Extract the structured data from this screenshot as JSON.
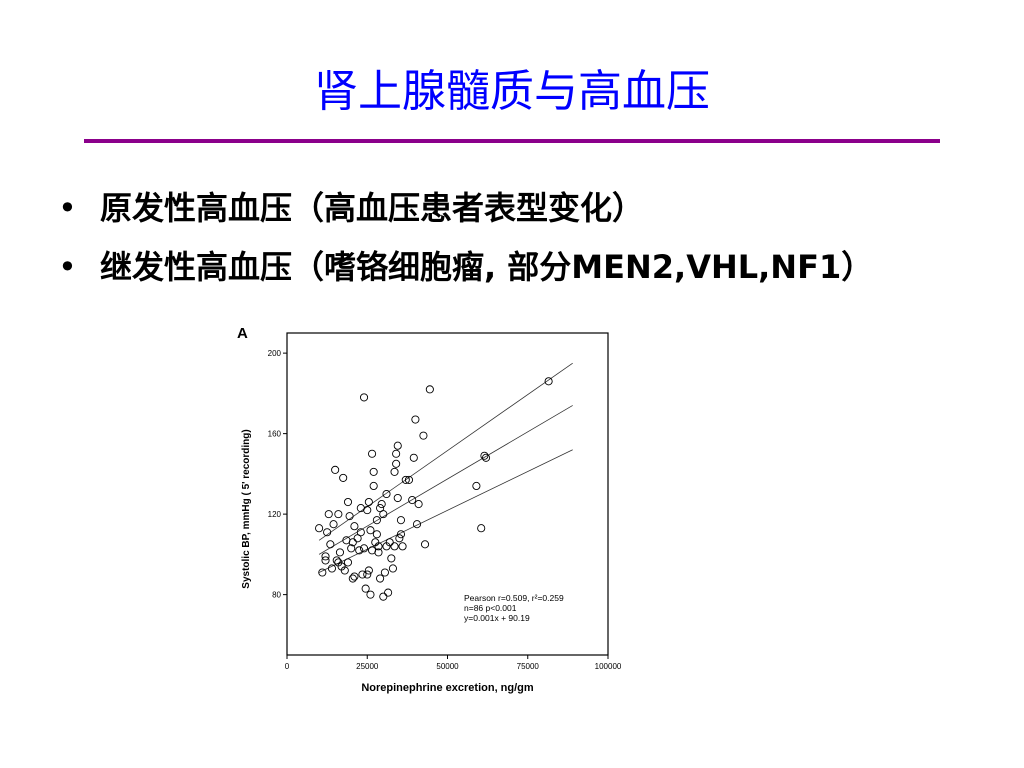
{
  "slide": {
    "title": "肾上腺髓质与高血压",
    "title_color": "#0000ff",
    "rule_color": "#8b008b",
    "bullets": [
      {
        "marker": "•",
        "text": "原发性高血压（高血压患者表型变化）"
      },
      {
        "marker": "•",
        "text": "继发性高血压（嗜铬细胞瘤, 部分MEN2,VHL,NF1）"
      }
    ]
  },
  "chart_data": {
    "type": "scatter",
    "panel_label": "A",
    "xlabel": "Norepinephrine excretion, ng/gm",
    "ylabel": "Systolic BP, mmHg ( 5' recording)",
    "xlim": [
      0,
      100000
    ],
    "ylim": [
      50,
      210
    ],
    "xticks": [
      0,
      25000,
      50000,
      75000,
      100000
    ],
    "yticks": [
      80,
      120,
      160,
      200
    ],
    "xticklabels": [
      "0",
      "25000",
      "50000",
      "75000",
      "100000"
    ],
    "yticklabels": [
      "80",
      "120",
      "160",
      "200"
    ],
    "annotation": [
      "Pearson r=0.509, r²=0.259",
      "n=86  p<0.001",
      "y=0.001x + 90.19"
    ],
    "points": [
      [
        10000,
        113
      ],
      [
        11000,
        91
      ],
      [
        12000,
        97
      ],
      [
        12500,
        111
      ],
      [
        13000,
        120
      ],
      [
        13500,
        105
      ],
      [
        14000,
        93
      ],
      [
        14500,
        115
      ],
      [
        15000,
        142
      ],
      [
        15500,
        97
      ],
      [
        16000,
        120
      ],
      [
        16500,
        101
      ],
      [
        17000,
        94
      ],
      [
        17500,
        138
      ],
      [
        18000,
        92
      ],
      [
        18500,
        107
      ],
      [
        19000,
        126
      ],
      [
        19500,
        119
      ],
      [
        20000,
        103
      ],
      [
        20500,
        106
      ],
      [
        21000,
        114
      ],
      [
        21000,
        89
      ],
      [
        22000,
        108
      ],
      [
        22500,
        102
      ],
      [
        23000,
        111
      ],
      [
        23500,
        90
      ],
      [
        24000,
        178
      ],
      [
        24000,
        103
      ],
      [
        24500,
        83
      ],
      [
        25000,
        122
      ],
      [
        25000,
        90
      ],
      [
        25500,
        126
      ],
      [
        26000,
        112
      ],
      [
        26000,
        80
      ],
      [
        26500,
        102
      ],
      [
        26500,
        150
      ],
      [
        27000,
        141
      ],
      [
        27000,
        134
      ],
      [
        27500,
        106
      ],
      [
        28000,
        110
      ],
      [
        28500,
        101
      ],
      [
        28500,
        104
      ],
      [
        29000,
        123
      ],
      [
        29000,
        88
      ],
      [
        29500,
        125
      ],
      [
        30000,
        120
      ],
      [
        30000,
        79
      ],
      [
        30500,
        91
      ],
      [
        31000,
        104
      ],
      [
        31000,
        130
      ],
      [
        31500,
        81
      ],
      [
        32000,
        106
      ],
      [
        32500,
        98
      ],
      [
        33000,
        93
      ],
      [
        33500,
        104
      ],
      [
        34000,
        150
      ],
      [
        34000,
        145
      ],
      [
        34500,
        128
      ],
      [
        34500,
        154
      ],
      [
        35000,
        108
      ],
      [
        35500,
        117
      ],
      [
        35500,
        110
      ],
      [
        36000,
        104
      ],
      [
        37000,
        137
      ],
      [
        38000,
        137
      ],
      [
        39000,
        127
      ],
      [
        39500,
        148
      ],
      [
        40000,
        167
      ],
      [
        40500,
        115
      ],
      [
        41000,
        125
      ],
      [
        42500,
        159
      ],
      [
        43000,
        105
      ],
      [
        44500,
        182
      ],
      [
        59000,
        134
      ],
      [
        60500,
        113
      ],
      [
        61500,
        149
      ],
      [
        62000,
        148
      ],
      [
        81500,
        186
      ],
      [
        12000,
        99
      ],
      [
        19000,
        96
      ],
      [
        20500,
        88
      ],
      [
        33500,
        141
      ],
      [
        28000,
        117
      ],
      [
        23000,
        123
      ],
      [
        16000,
        96
      ],
      [
        25500,
        92
      ]
    ],
    "fit_lines": [
      {
        "name": "upper",
        "x": [
          10000,
          89000
        ],
        "y": [
          107,
          195
        ]
      },
      {
        "name": "fit",
        "x": [
          10000,
          89000
        ],
        "y": [
          100,
          174
        ]
      },
      {
        "name": "lower",
        "x": [
          10000,
          89000
        ],
        "y": [
          91,
          152
        ]
      }
    ],
    "grid": false,
    "legend": "none"
  }
}
